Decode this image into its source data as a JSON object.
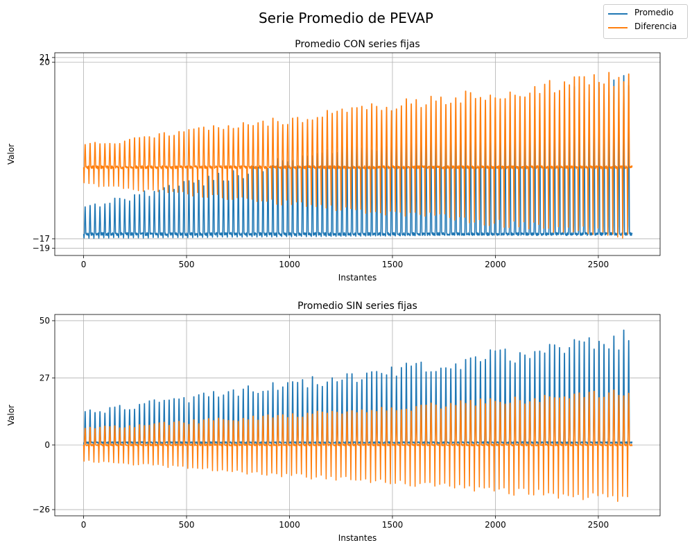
{
  "suptitle": "Serie Promedio de PEVAP",
  "legend": {
    "placement": "top-right",
    "entries": [
      {
        "label": "Promedio",
        "color": "#1f77b4"
      },
      {
        "label": "Diferencia",
        "color": "#ff7f0e"
      }
    ]
  },
  "chart_data": [
    {
      "type": "line",
      "title": "Promedio CON series fijas",
      "xlabel": "Instantes",
      "ylabel": "Valor",
      "xlim": [
        -140,
        2800
      ],
      "ylim": [
        -20.5,
        22
      ],
      "xticks": [
        0,
        500,
        1000,
        1500,
        2000,
        2500
      ],
      "yticks": [
        -19,
        -17,
        20,
        21
      ],
      "grid": true,
      "n_points": 2665,
      "cycle_length": 24,
      "series": [
        {
          "name": "Promedio",
          "color": "#1f77b4",
          "baseline_start": -16,
          "baseline_end": -16,
          "trough_start": -17,
          "trough_end": -16,
          "peak_start": -10,
          "peak_end": 18
        },
        {
          "name": "Diferencia",
          "color": "#ff7f0e",
          "baseline_start": -2,
          "baseline_end": -2,
          "trough_start": -6,
          "trough_end": -18,
          "peak_start": 3,
          "peak_end": 19
        }
      ]
    },
    {
      "type": "line",
      "title": "Promedio SIN series fijas",
      "xlabel": "Instantes",
      "ylabel": "Valor",
      "xlim": [
        -140,
        2800
      ],
      "ylim": [
        -28.5,
        52.5
      ],
      "xticks": [
        0,
        500,
        1000,
        1500,
        2000,
        2500
      ],
      "yticks": [
        -26,
        0,
        27,
        50
      ],
      "grid": true,
      "n_points": 2665,
      "cycle_length": 24,
      "series": [
        {
          "name": "Promedio",
          "color": "#1f77b4",
          "baseline_start": 1,
          "baseline_end": 1,
          "trough_start": 0,
          "trough_end": 0,
          "peak_start": 14,
          "peak_end": 47
        },
        {
          "name": "Diferencia",
          "color": "#ff7f0e",
          "baseline_start": 0,
          "baseline_end": 0,
          "trough_start": -7,
          "trough_end": -25,
          "peak_start": 7,
          "peak_end": 23
        }
      ]
    }
  ]
}
